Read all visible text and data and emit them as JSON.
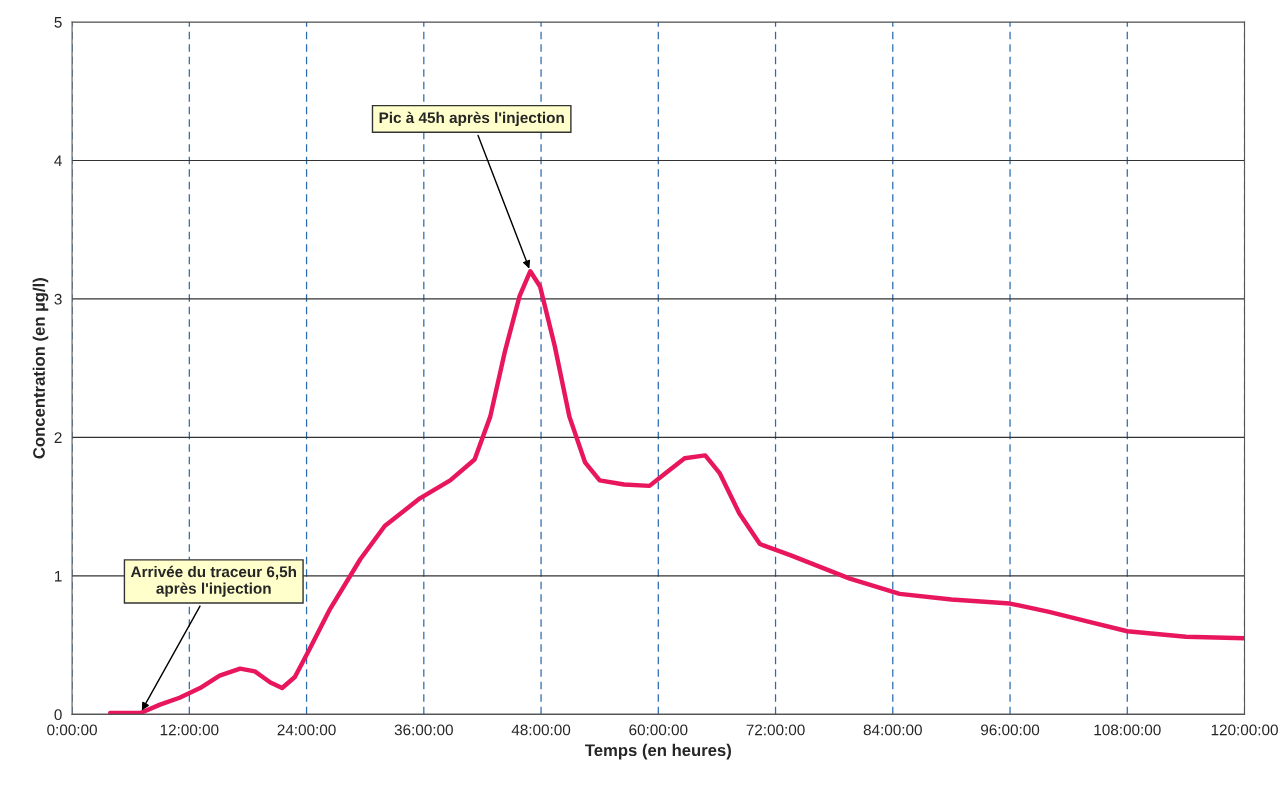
{
  "chart_data": {
    "type": "line",
    "xlabel": "Temps (en heures)",
    "ylabel": "Concentration (en µg/l)",
    "x": [
      3.9,
      7,
      9,
      11,
      13.1,
      15.1,
      17.2,
      18.7,
      20.3,
      21.5,
      22.8,
      24.3,
      26.4,
      29.5,
      32,
      35.6,
      38.7,
      41.2,
      42.8,
      44.3,
      45.8,
      46.9,
      47.9,
      49.4,
      50.9,
      52.5,
      54,
      56.5,
      59.1,
      60.7,
      62.7,
      64.8,
      66.3,
      68.3,
      70.4,
      73.5,
      79.6,
      84.7,
      90,
      96,
      100,
      104,
      108,
      114,
      120
    ],
    "series": [
      {
        "color": "#e8175d",
        "values": [
          0.01,
          0.01,
          0.07,
          0.12,
          0.19,
          0.28,
          0.33,
          0.31,
          0.23,
          0.19,
          0.27,
          0.47,
          0.76,
          1.12,
          1.36,
          1.56,
          1.69,
          1.84,
          2.15,
          2.62,
          3.02,
          3.2,
          3.09,
          2.66,
          2.15,
          1.82,
          1.69,
          1.66,
          1.65,
          1.74,
          1.85,
          1.87,
          1.74,
          1.45,
          1.23,
          1.15,
          0.98,
          0.87,
          0.83,
          0.8,
          0.74,
          0.67,
          0.6,
          0.56,
          0.55
        ]
      }
    ],
    "xlim": [
      0,
      120
    ],
    "xticks": [
      {
        "value": 0,
        "label": "0:00:00"
      },
      {
        "value": 12,
        "label": "12:00:00"
      },
      {
        "value": 24,
        "label": "24:00:00"
      },
      {
        "value": 36,
        "label": "36:00:00"
      },
      {
        "value": 48,
        "label": "48:00:00"
      },
      {
        "value": 60,
        "label": "60:00:00"
      },
      {
        "value": 72,
        "label": "72:00:00"
      },
      {
        "value": 84,
        "label": "84:00:00"
      },
      {
        "value": 96,
        "label": "96:00:00"
      },
      {
        "value": 108,
        "label": "108:00:00"
      },
      {
        "value": 120,
        "label": "120:00:00"
      }
    ],
    "ylim": [
      0,
      5
    ],
    "yticks": [
      0,
      1,
      2,
      3,
      4,
      5
    ],
    "grid": true,
    "marker": "none",
    "line_style": "solid",
    "annotations": [
      {
        "text": "Pic à 45h après l'injection",
        "x": 46.9,
        "y": 3.2
      },
      {
        "text": "Arrivée du traceur 6,5h\naprès l'injection",
        "x": 7,
        "y": 0.01
      }
    ]
  }
}
